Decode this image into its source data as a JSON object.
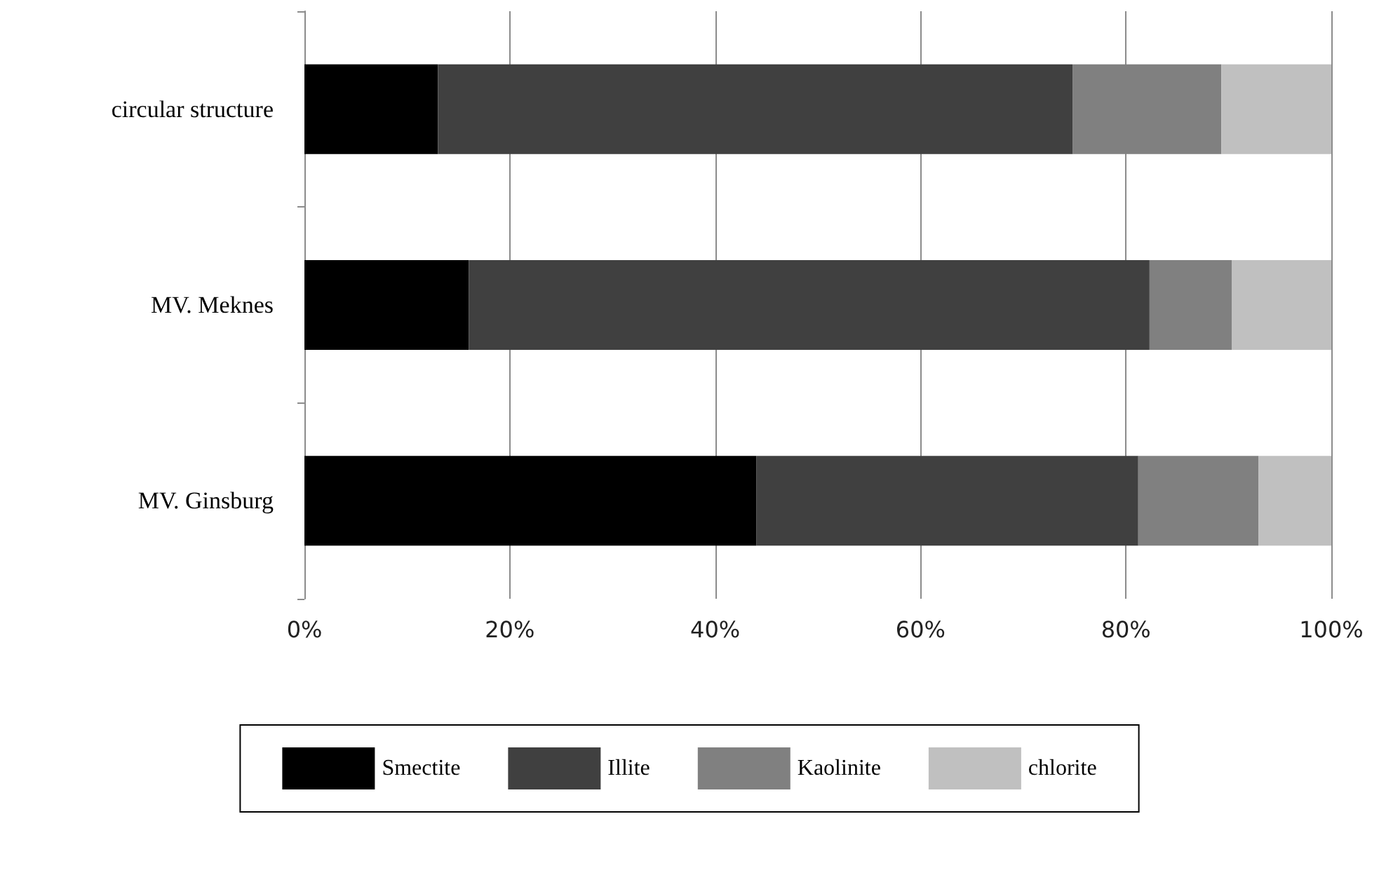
{
  "chart_data": {
    "type": "bar",
    "orientation": "horizontal",
    "stacked": true,
    "categories": [
      "circular structure",
      "MV. Meknes",
      "MV. Ginsburg"
    ],
    "series": [
      {
        "name": "Smectite",
        "color": "#000000",
        "values": [
          13,
          16,
          44
        ]
      },
      {
        "name": "Illite",
        "color": "#404040",
        "values": [
          61.8,
          66.3,
          37.2
        ]
      },
      {
        "name": "Kaolinite",
        "color": "#808080",
        "values": [
          14.5,
          8,
          11.7
        ]
      },
      {
        "name": "chlorite",
        "color": "#c0c0c0",
        "values": [
          10.7,
          9.7,
          7.1
        ]
      }
    ],
    "xlim": [
      0,
      100
    ],
    "xticks": [
      {
        "value": 0,
        "label": "0%"
      },
      {
        "value": 20,
        "label": "20%"
      },
      {
        "value": 40,
        "label": "40%"
      },
      {
        "value": 60,
        "label": "60%"
      },
      {
        "value": 80,
        "label": "80%"
      },
      {
        "value": 100,
        "label": "100%"
      }
    ],
    "grid": "x",
    "legend": "bottom"
  }
}
